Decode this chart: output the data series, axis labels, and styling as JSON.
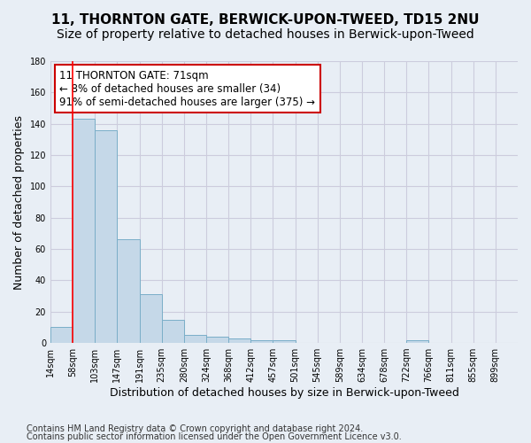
{
  "title": "11, THORNTON GATE, BERWICK-UPON-TWEED, TD15 2NU",
  "subtitle": "Size of property relative to detached houses in Berwick-upon-Tweed",
  "xlabel": "Distribution of detached houses by size in Berwick-upon-Tweed",
  "ylabel": "Number of detached properties",
  "bar_values": [
    10,
    143,
    136,
    66,
    31,
    15,
    5,
    4,
    3,
    2,
    2,
    0,
    0,
    0,
    0,
    0,
    2,
    0,
    0,
    0,
    0
  ],
  "bin_labels": [
    "14sqm",
    "58sqm",
    "103sqm",
    "147sqm",
    "191sqm",
    "235sqm",
    "280sqm",
    "324sqm",
    "368sqm",
    "412sqm",
    "457sqm",
    "501sqm",
    "545sqm",
    "589sqm",
    "634sqm",
    "678sqm",
    "722sqm",
    "766sqm",
    "811sqm",
    "855sqm",
    "899sqm"
  ],
  "bar_color": "#c5d8e8",
  "bar_edge_color": "#7aaec8",
  "grid_color": "#ccccdd",
  "bg_color": "#e8eef5",
  "annotation_line1": "11 THORNTON GATE: 71sqm",
  "annotation_line2": "← 8% of detached houses are smaller (34)",
  "annotation_line3": "91% of semi-detached houses are larger (375) →",
  "annotation_box_color": "#ffffff",
  "annotation_box_edge": "#cc0000",
  "red_line_x": 1.0,
  "ylim": [
    0,
    180
  ],
  "yticks": [
    0,
    20,
    40,
    60,
    80,
    100,
    120,
    140,
    160,
    180
  ],
  "footer1": "Contains HM Land Registry data © Crown copyright and database right 2024.",
  "footer2": "Contains public sector information licensed under the Open Government Licence v3.0.",
  "title_fontsize": 11,
  "subtitle_fontsize": 10,
  "annotation_fontsize": 8.5,
  "tick_fontsize": 7,
  "footer_fontsize": 7
}
